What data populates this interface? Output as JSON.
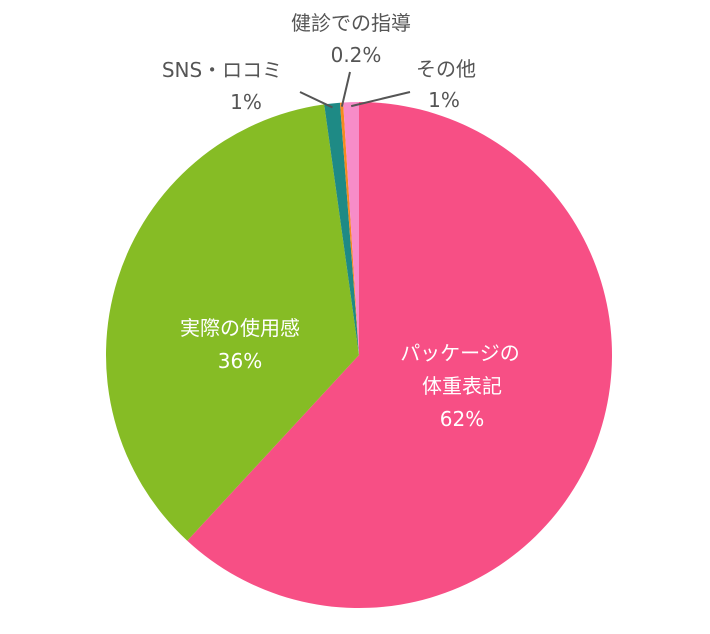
{
  "chart_data": {
    "type": "pie",
    "title": "",
    "start_angle_deg": 0,
    "direction": "clockwise",
    "slices": [
      {
        "label_lines": [
          "パッケージの",
          "体重表記"
        ],
        "value": 62,
        "value_label": "62%",
        "color": "#F74F85"
      },
      {
        "label_lines": [
          "実際の使用感"
        ],
        "value": 36,
        "value_label": "36%",
        "color": "#86BC25"
      },
      {
        "label_lines": [
          "SNS・ロコミ"
        ],
        "value": 1,
        "value_label": "1%",
        "color": "#1E8A85"
      },
      {
        "label_lines": [
          "健診での指導"
        ],
        "value": 0.2,
        "value_label": "0.2%",
        "color": "#F58A1F"
      },
      {
        "label_lines": [
          "その他"
        ],
        "value": 1,
        "value_label": "1%",
        "color": "#F78CC8"
      }
    ]
  }
}
